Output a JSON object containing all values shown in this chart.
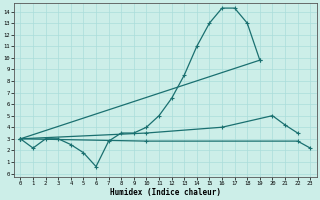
{
  "xlabel": "Humidex (Indice chaleur)",
  "bg_color": "#cceee8",
  "line_color": "#1a7070",
  "grid_color": "#aaddda",
  "xlim": [
    -0.5,
    23.5
  ],
  "ylim": [
    -0.3,
    14.7
  ],
  "xticks": [
    0,
    1,
    2,
    3,
    4,
    5,
    6,
    7,
    8,
    9,
    10,
    11,
    12,
    13,
    14,
    15,
    16,
    17,
    18,
    19,
    20,
    21,
    22,
    23
  ],
  "yticks": [
    0,
    1,
    2,
    3,
    4,
    5,
    6,
    7,
    8,
    9,
    10,
    11,
    12,
    13,
    14
  ],
  "line1_x": [
    0,
    1,
    2,
    3,
    4,
    5,
    6,
    7,
    8,
    9,
    10,
    11,
    12,
    13,
    14,
    15,
    16,
    17,
    18,
    19
  ],
  "line1_y": [
    3.0,
    2.2,
    3.0,
    3.0,
    2.5,
    1.8,
    0.6,
    2.8,
    3.5,
    3.5,
    4.0,
    5.0,
    6.5,
    8.5,
    11.0,
    13.0,
    14.3,
    14.3,
    13.0,
    9.8
  ],
  "line2_x": [
    0,
    19
  ],
  "line2_y": [
    3.0,
    9.8
  ],
  "line3_x": [
    0,
    10,
    16,
    20,
    21,
    22
  ],
  "line3_y": [
    3.0,
    3.5,
    4.0,
    5.0,
    4.2,
    3.5
  ],
  "line4_x": [
    0,
    10,
    22,
    23
  ],
  "line4_y": [
    3.0,
    2.8,
    2.8,
    2.2
  ]
}
